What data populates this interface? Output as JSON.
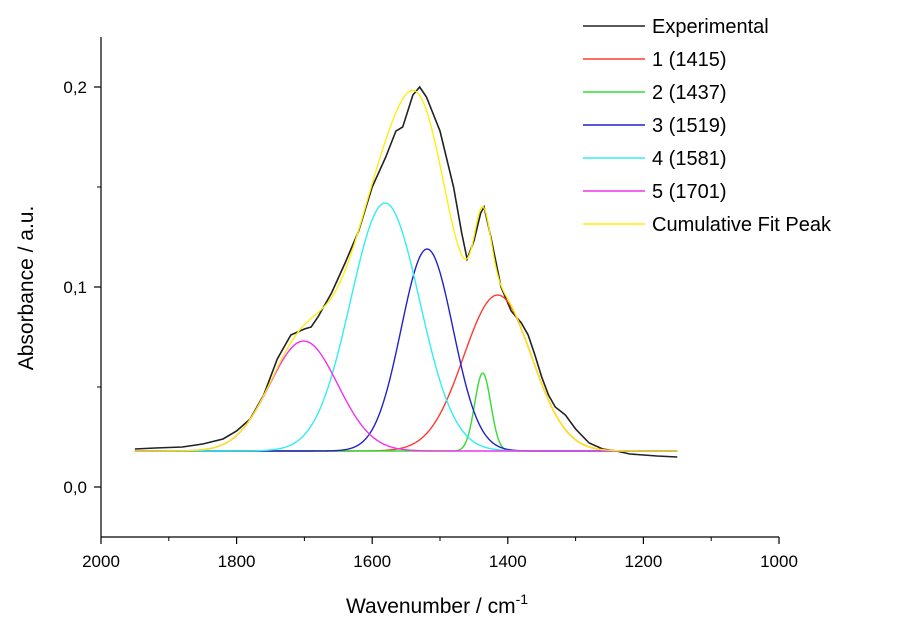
{
  "chart_data": {
    "type": "line",
    "xlabel": "Wavenumber / cm",
    "xlabel_sup": "-1",
    "ylabel": "Absorbance / a.u.",
    "xlim": [
      2000,
      1000
    ],
    "ylim": [
      -0.025,
      0.225
    ],
    "x_reversed": true,
    "x_ticks": [
      2000,
      1800,
      1600,
      1400,
      1200,
      1000
    ],
    "x_tick_labels": [
      "2000",
      "1800",
      "1600",
      "1400",
      "1200",
      "1000"
    ],
    "y_ticks": [
      0.0,
      0.1,
      0.2
    ],
    "y_tick_labels": [
      "0,0",
      "0,1",
      "0,2"
    ],
    "grid": false,
    "legend_position": "top-right",
    "baseline": 0.018,
    "peaks": [
      {
        "name": "1 (1415)",
        "center": 1415,
        "height": 0.078,
        "fwhm": 118,
        "color": "#ff3b30"
      },
      {
        "name": "2 (1437)",
        "center": 1437,
        "height": 0.039,
        "fwhm": 28,
        "color": "#33dd33"
      },
      {
        "name": "3 (1519)",
        "center": 1519,
        "height": 0.101,
        "fwhm": 90,
        "color": "#2222cc"
      },
      {
        "name": "4 (1581)",
        "center": 1581,
        "height": 0.124,
        "fwhm": 120,
        "color": "#33eeee"
      },
      {
        "name": "5 (1701)",
        "center": 1701,
        "height": 0.055,
        "fwhm": 118,
        "color": "#ee33ee"
      }
    ],
    "experimental": {
      "name": "Experimental",
      "color": "#222222",
      "points": [
        [
          1950,
          0.019
        ],
        [
          1920,
          0.0195
        ],
        [
          1880,
          0.02
        ],
        [
          1850,
          0.0215
        ],
        [
          1820,
          0.024
        ],
        [
          1800,
          0.028
        ],
        [
          1780,
          0.034
        ],
        [
          1760,
          0.046
        ],
        [
          1740,
          0.064
        ],
        [
          1720,
          0.076
        ],
        [
          1700,
          0.079
        ],
        [
          1690,
          0.08
        ],
        [
          1680,
          0.085
        ],
        [
          1660,
          0.097
        ],
        [
          1640,
          0.112
        ],
        [
          1620,
          0.128
        ],
        [
          1600,
          0.15
        ],
        [
          1580,
          0.165
        ],
        [
          1565,
          0.178
        ],
        [
          1555,
          0.18
        ],
        [
          1540,
          0.196
        ],
        [
          1530,
          0.2
        ],
        [
          1520,
          0.195
        ],
        [
          1500,
          0.178
        ],
        [
          1480,
          0.15
        ],
        [
          1468,
          0.127
        ],
        [
          1460,
          0.114
        ],
        [
          1450,
          0.123
        ],
        [
          1440,
          0.137
        ],
        [
          1435,
          0.14
        ],
        [
          1425,
          0.125
        ],
        [
          1410,
          0.1
        ],
        [
          1395,
          0.088
        ],
        [
          1380,
          0.082
        ],
        [
          1370,
          0.076
        ],
        [
          1360,
          0.066
        ],
        [
          1350,
          0.055
        ],
        [
          1340,
          0.046
        ],
        [
          1330,
          0.04
        ],
        [
          1315,
          0.036
        ],
        [
          1300,
          0.029
        ],
        [
          1280,
          0.022
        ],
        [
          1260,
          0.019
        ],
        [
          1240,
          0.018
        ],
        [
          1220,
          0.0165
        ],
        [
          1200,
          0.016
        ],
        [
          1180,
          0.0155
        ],
        [
          1150,
          0.015
        ]
      ]
    },
    "cumulative": {
      "name": "Cumulative Fit Peak",
      "color": "#ffee00"
    },
    "x_range": [
      1950,
      1150
    ]
  }
}
